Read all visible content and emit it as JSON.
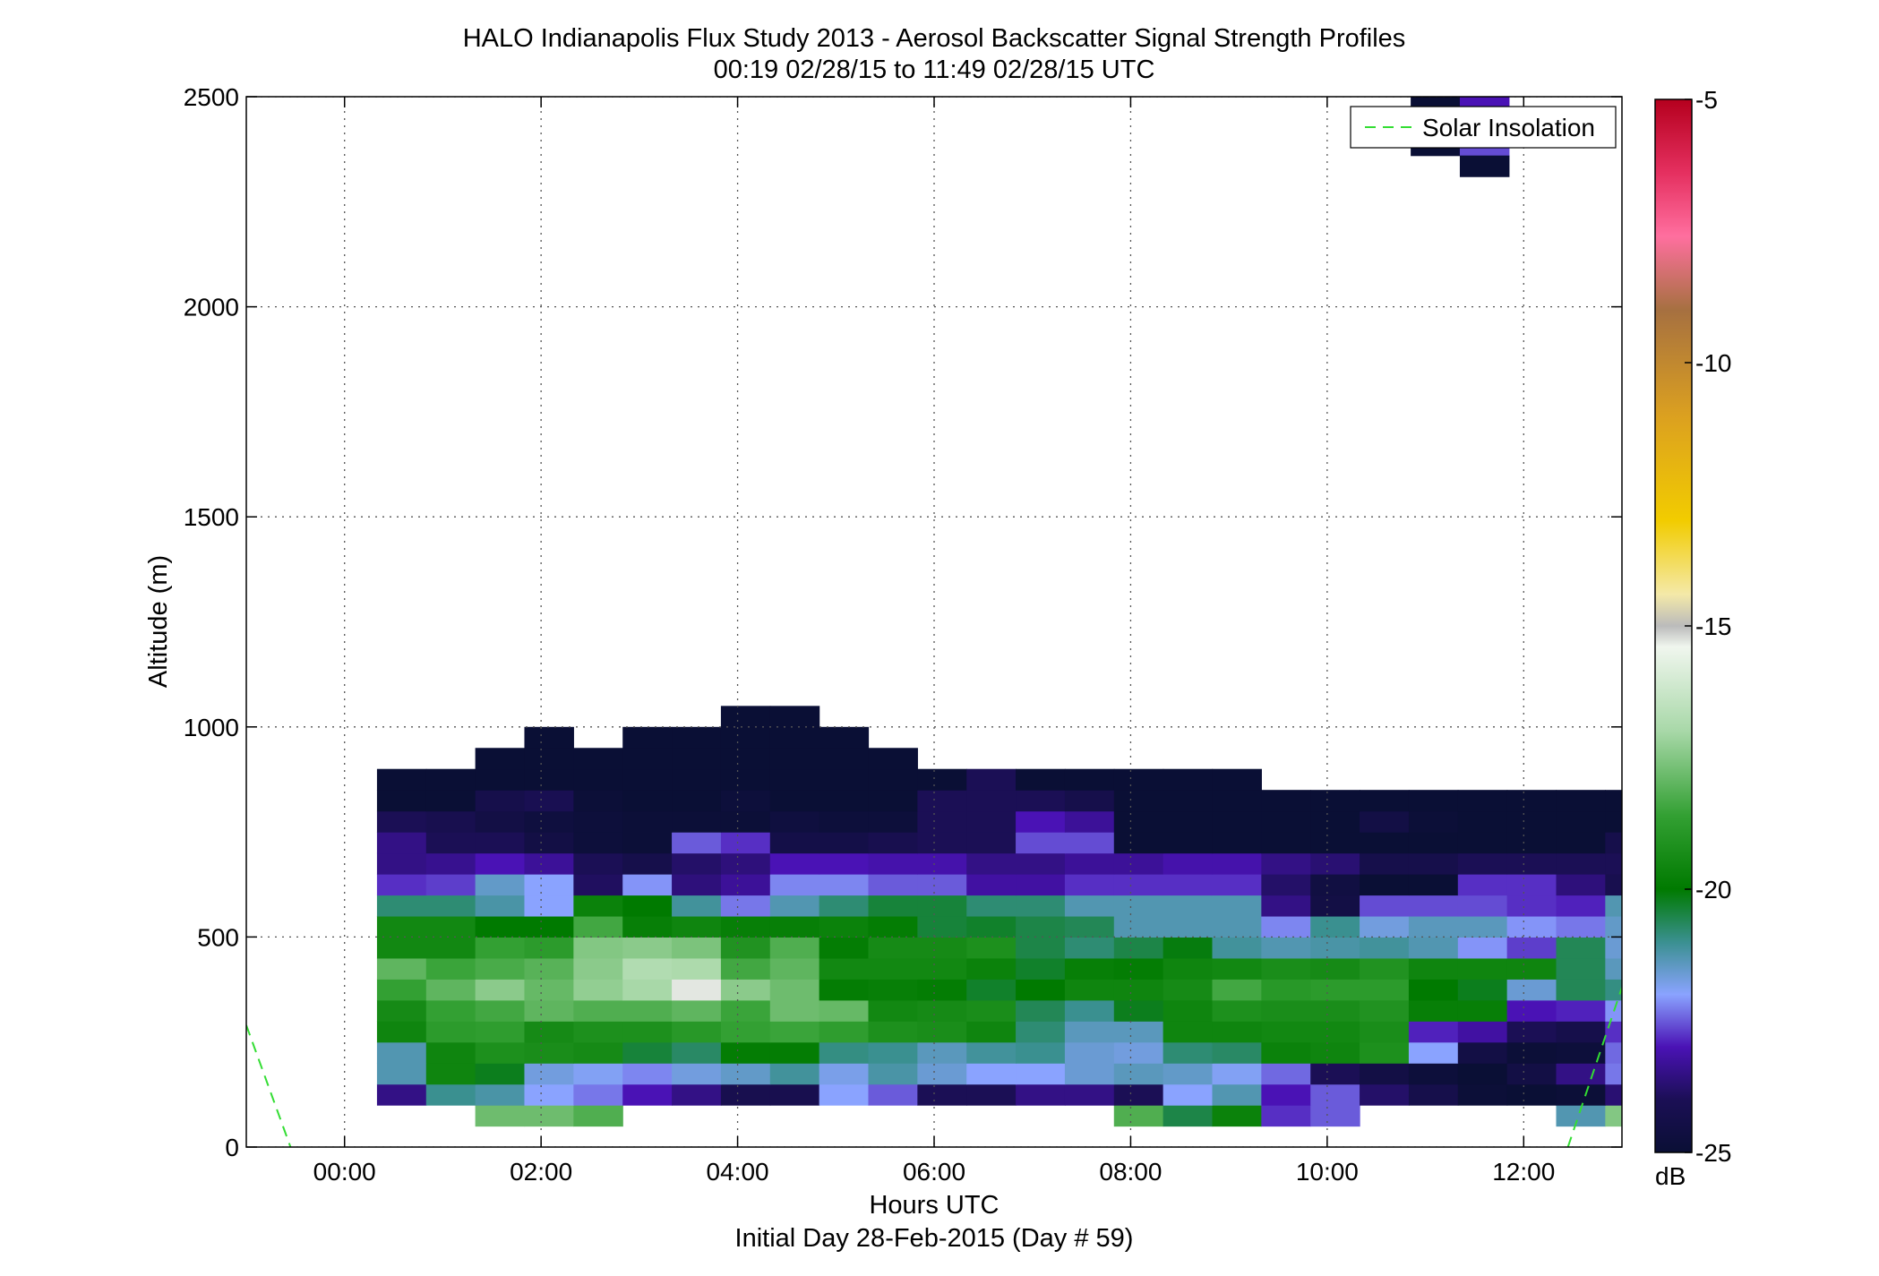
{
  "chart_data": {
    "type": "heatmap",
    "title": "HALO Indianapolis Flux Study 2013 - Aerosol Backscatter Signal Strength Profiles",
    "subtitle": "00:19 02/28/15 to 11:49 02/28/15  UTC",
    "xlabel": "Hours UTC",
    "xlabel2": "Initial Day 28-Feb-2015 (Day # 59)",
    "ylabel": "Altitude (m)",
    "xlim": [
      -1.0,
      13.0
    ],
    "ylim": [
      0,
      2500
    ],
    "x_ticks": [
      0,
      2,
      4,
      6,
      8,
      10,
      12
    ],
    "x_tick_labels": [
      "00:00",
      "02:00",
      "04:00",
      "06:00",
      "08:00",
      "10:00",
      "12:00"
    ],
    "y_ticks": [
      0,
      500,
      1000,
      1500,
      2000,
      2500
    ],
    "y_tick_labels": [
      "0",
      "500",
      "1000",
      "1500",
      "2000",
      "2500"
    ],
    "grid": true,
    "legend": {
      "position": "top-right",
      "entries": [
        {
          "name": "Solar Insolation",
          "color": "#33dd33",
          "style": "dashed"
        }
      ]
    },
    "colorbar": {
      "label": "dB",
      "range": [
        -25,
        -5
      ],
      "ticks": [
        -5,
        -10,
        -15,
        -20,
        -25
      ],
      "tick_labels": [
        "-5",
        "-10",
        "-15",
        "-20",
        "-25"
      ]
    },
    "x_time_start": 0.33,
    "time_step_hours": 0.5,
    "altitude_start_m": 50,
    "altitude_step_m": 50,
    "missing_value": null,
    "cells_db": [
      [
        null,
        null,
        -17.8,
        -17.8,
        -18.2,
        null,
        null,
        null,
        null,
        null,
        null,
        null,
        null,
        null,
        null,
        -18.2,
        -20.5,
        -19.7,
        -22.8,
        -22.5,
        null,
        null,
        null,
        null,
        -21.3,
        -17.5
      ],
      [
        -23.5,
        -21.0,
        -21.2,
        -22.0,
        -22.3,
        -23.0,
        -23.5,
        -24.2,
        -24.2,
        -22.0,
        -22.5,
        -24.0,
        -24.0,
        -23.5,
        -23.5,
        -24.0,
        -22.0,
        -21.3,
        -23.0,
        -22.5,
        -23.8,
        -24.3,
        -24.9,
        -25.0,
        -24.9,
        -23.7
      ],
      [
        -21.3,
        -19.6,
        -20.2,
        -21.7,
        -21.9,
        -22.2,
        -21.7,
        -21.5,
        -21.1,
        -21.8,
        -21.2,
        -21.6,
        -22.0,
        -22.0,
        -21.6,
        -21.4,
        -21.5,
        -21.9,
        -22.4,
        -24.0,
        -24.5,
        -24.8,
        -25.0,
        -24.5,
        -23.5,
        -22.3
      ],
      [
        -21.3,
        -19.6,
        -19.2,
        -19.3,
        -19.4,
        -20.4,
        -20.7,
        -19.9,
        -19.9,
        -20.9,
        -21.0,
        -21.4,
        -21.1,
        -21.0,
        -21.6,
        -21.7,
        -20.8,
        -20.7,
        -19.7,
        -19.6,
        -19.2,
        -22.0,
        -24.5,
        -24.9,
        -24.8,
        -22.4
      ],
      [
        -19.6,
        -18.8,
        -18.7,
        -19.4,
        -19.2,
        -19.2,
        -18.9,
        -18.6,
        -18.5,
        -18.7,
        -19.2,
        -19.3,
        -19.6,
        -20.8,
        -21.4,
        -21.4,
        -19.6,
        -19.6,
        -19.5,
        -19.5,
        -19.3,
        -22.9,
        -23.2,
        -24.0,
        -24.3,
        -22.8
      ],
      [
        -19.4,
        -18.6,
        -18.4,
        -18.0,
        -18.2,
        -18.2,
        -18.0,
        -18.5,
        -17.8,
        -17.9,
        -19.5,
        -19.4,
        -19.3,
        -20.6,
        -21.0,
        -20.2,
        -19.6,
        -19.2,
        -19.3,
        -19.3,
        -19.1,
        -19.8,
        -19.8,
        -23.0,
        -22.9,
        -22.1
      ],
      [
        -18.6,
        -18.0,
        -17.4,
        -17.9,
        -17.3,
        -17.0,
        -15.3,
        -17.4,
        -17.8,
        -19.9,
        -19.8,
        -19.9,
        -20.3,
        -20.0,
        -19.6,
        -19.6,
        -19.4,
        -18.4,
        -18.9,
        -18.8,
        -18.8,
        -20.0,
        -20.2,
        -21.6,
        -20.6,
        -20.9
      ],
      [
        -18.0,
        -18.5,
        -18.3,
        -18.1,
        -17.4,
        -16.8,
        -16.9,
        -18.4,
        -18.0,
        -19.5,
        -19.5,
        -19.5,
        -19.7,
        -20.3,
        -19.8,
        -19.9,
        -19.6,
        -19.5,
        -19.3,
        -19.4,
        -19.1,
        -19.6,
        -19.6,
        -19.6,
        -20.6,
        -21.4
      ],
      [
        -19.5,
        -19.5,
        -18.6,
        -18.8,
        -17.5,
        -17.4,
        -17.6,
        -19.1,
        -18.2,
        -19.9,
        -19.4,
        -19.4,
        -19.2,
        -20.5,
        -20.8,
        -20.5,
        -20.1,
        -21.1,
        -21.3,
        -21.2,
        -21.1,
        -21.3,
        -22.1,
        -22.7,
        -20.6,
        -21.6
      ],
      [
        -19.5,
        -19.5,
        -20.0,
        -20.0,
        -18.4,
        -19.8,
        -19.6,
        -19.8,
        -19.8,
        -19.7,
        -19.9,
        -20.4,
        -20.3,
        -20.5,
        -20.6,
        -21.3,
        -21.3,
        -21.3,
        -22.2,
        -21.0,
        -21.7,
        -21.4,
        -21.4,
        -22.1,
        -22.3,
        -21.5
      ],
      [
        -20.8,
        -20.8,
        -21.2,
        -22.0,
        -19.7,
        -20.0,
        -21.1,
        -22.3,
        -21.3,
        -20.8,
        -20.4,
        -20.4,
        -20.8,
        -20.8,
        -21.3,
        -21.3,
        -21.3,
        -21.3,
        -23.5,
        -24.5,
        -22.6,
        -22.6,
        -22.6,
        -22.8,
        -22.9,
        -21.3
      ],
      [
        -22.8,
        -22.7,
        -21.5,
        -22.0,
        -23.9,
        -22.1,
        -23.6,
        -23.3,
        -22.2,
        -22.2,
        -22.5,
        -22.5,
        -23.2,
        -23.2,
        -22.8,
        -22.8,
        -22.8,
        -22.8,
        -23.8,
        -24.6,
        -25.0,
        -25.0,
        -22.8,
        -22.8,
        -23.6,
        -24.2
      ],
      [
        -23.5,
        -23.4,
        -23.0,
        -23.3,
        -24.0,
        -24.3,
        -23.8,
        -23.6,
        -23.0,
        -23.0,
        -23.1,
        -23.1,
        -23.5,
        -23.5,
        -23.3,
        -23.3,
        -23.1,
        -23.1,
        -23.5,
        -23.7,
        -24.3,
        -24.3,
        -24.0,
        -24.0,
        -24.0,
        -24.0
      ],
      [
        -23.5,
        -24.0,
        -24.0,
        -24.5,
        -24.8,
        -24.9,
        -22.5,
        -22.8,
        -24.4,
        -24.4,
        -24.2,
        -24.0,
        -24.0,
        -22.6,
        -22.6,
        -25.0,
        -25.0,
        -25.0,
        -25.0,
        -25.0,
        -25.0,
        -25.0,
        -25.0,
        -25.0,
        -25.0,
        -24.3
      ],
      [
        -24.0,
        -24.2,
        -24.5,
        -24.7,
        -24.8,
        -24.9,
        -24.9,
        -24.9,
        -24.7,
        -24.8,
        -24.8,
        -24.0,
        -24.0,
        -23.0,
        -23.3,
        -25.0,
        -25.0,
        -25.0,
        -25.0,
        -25.0,
        -24.5,
        -24.9,
        -25.0,
        -25.0,
        -25.0,
        -25.0
      ],
      [
        -25.0,
        -25.0,
        -24.3,
        -24.1,
        -24.9,
        -25.0,
        -25.0,
        -24.8,
        -25.0,
        -25.0,
        -25.0,
        -24.0,
        -24.0,
        -24.0,
        -24.3,
        -25.0,
        -25.0,
        -25.0,
        -25.0,
        -25.0,
        -25.0,
        -25.0,
        -25.0,
        -25.0,
        -25.0,
        -25.0
      ],
      [
        -25.0,
        -25.0,
        -25.0,
        -25.0,
        -25.0,
        -25.0,
        -25.0,
        -25.0,
        -25.0,
        -25.0,
        -25.0,
        -25.0,
        -24.0,
        -25.0,
        -25.0,
        -25.0,
        -25.0,
        -25.0,
        null,
        null,
        null,
        null,
        null,
        null,
        null,
        null
      ],
      [
        null,
        null,
        -25.0,
        -25.0,
        -25.0,
        -25.0,
        -25.0,
        -25.0,
        -25.0,
        -25.0,
        -25.0,
        null,
        null,
        null,
        null,
        null,
        null,
        null,
        null,
        null,
        null,
        null,
        null,
        null,
        null,
        null
      ],
      [
        null,
        null,
        null,
        -25.0,
        null,
        -25.0,
        -25.0,
        -25.0,
        -25.0,
        -25.0,
        null,
        null,
        null,
        null,
        null,
        null,
        null,
        null,
        null,
        null,
        null,
        null,
        null,
        null,
        null,
        null
      ],
      [
        null,
        null,
        null,
        null,
        null,
        null,
        null,
        -25.0,
        -25.0,
        null,
        null,
        null,
        null,
        null,
        null,
        null,
        null,
        null,
        null,
        null,
        null,
        null,
        null,
        null,
        null,
        null
      ]
    ],
    "upper_cells": [
      {
        "t0": 10.85,
        "t1": 11.35,
        "z0": 2360,
        "z1": 2500,
        "db": -25.0
      },
      {
        "t0": 11.35,
        "t1": 11.85,
        "z0": 2460,
        "z1": 2500,
        "db": -23.0
      },
      {
        "t0": 11.35,
        "t1": 11.85,
        "z0": 2360,
        "z1": 2460,
        "db": -22.6
      },
      {
        "t0": 11.35,
        "t1": 11.85,
        "z0": 2310,
        "z1": 2360,
        "db": -25.0
      }
    ],
    "solar_insolation_segments": [
      {
        "x": [
          -1.0,
          -0.55
        ],
        "y": [
          290,
          0
        ]
      },
      {
        "x": [
          12.45,
          13.0
        ],
        "y": [
          0,
          380
        ]
      }
    ]
  },
  "colors": {
    "background": "#ffffff",
    "axis": "#000000",
    "grid": "#555555",
    "solar_line": "#33dd33"
  }
}
